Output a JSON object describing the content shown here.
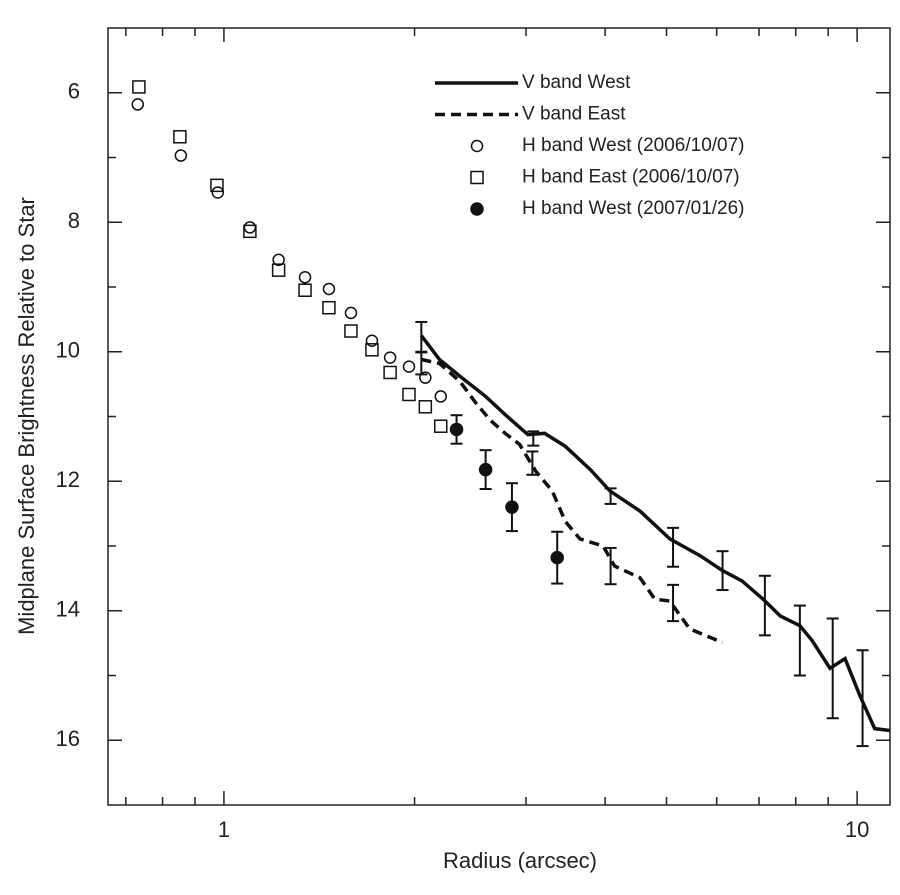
{
  "chart_data": {
    "type": "line",
    "xlabel": "Radius (arcsec)",
    "ylabel": "Midplane Surface Brightness Relative to Star",
    "xlog": true,
    "xlim": [
      0.656,
      11.27
    ],
    "xticks": [
      1,
      10
    ],
    "xminorticks": [
      0.7,
      0.8,
      0.9,
      2,
      3,
      4,
      5,
      6,
      7,
      8,
      9
    ],
    "ylim": [
      5,
      17
    ],
    "y_inverted": true,
    "yticks": [
      6,
      8,
      10,
      12,
      14,
      16
    ],
    "yminorticks": [
      7,
      9,
      11,
      13,
      15
    ],
    "legend": "upper right",
    "series": [
      {
        "name": "V band West",
        "style": "solid",
        "color": "#111",
        "x": [
          2.05,
          2.19,
          2.36,
          2.59,
          2.78,
          3.02,
          3.21,
          3.46,
          3.79,
          4.07,
          4.54,
          5.06,
          5.65,
          6.13,
          6.58,
          7.1,
          7.56,
          8.12,
          8.49,
          9.06,
          9.57,
          10.1,
          10.66,
          11.27
        ],
        "values": [
          9.75,
          10.12,
          10.38,
          10.69,
          10.97,
          11.28,
          11.26,
          11.46,
          11.82,
          12.15,
          12.46,
          12.89,
          13.15,
          13.38,
          13.54,
          13.82,
          14.08,
          14.23,
          14.46,
          14.89,
          14.74,
          15.31,
          15.82,
          15.85
        ],
        "error_points": {
          "x": [
            2.05,
            3.08,
            4.08,
            5.12,
            6.13,
            7.15,
            8.12,
            9.15,
            10.2
          ],
          "values": [
            9.77,
            11.34,
            12.23,
            13.02,
            13.38,
            13.92,
            14.46,
            14.89,
            15.35
          ],
          "errors": [
            0.23,
            0.11,
            0.12,
            0.3,
            0.3,
            0.46,
            0.54,
            0.77,
            0.74
          ]
        }
      },
      {
        "name": "V band East",
        "style": "dashed",
        "color": "#111",
        "x": [
          2.05,
          2.19,
          2.36,
          2.49,
          2.63,
          2.78,
          2.93,
          3.11,
          3.3,
          3.46,
          3.65,
          3.97,
          4.14,
          4.54,
          4.79,
          5.06,
          5.44,
          6.13
        ],
        "values": [
          10.12,
          10.18,
          10.46,
          10.77,
          11.05,
          11.26,
          11.43,
          11.85,
          12.15,
          12.62,
          12.89,
          13.0,
          13.31,
          13.49,
          13.82,
          13.85,
          14.28,
          14.49
        ],
        "error_points": {
          "x": [
            2.05,
            3.07,
            4.08,
            5.12
          ],
          "values": [
            10.18,
            11.72,
            13.31,
            13.88
          ],
          "errors": [
            0.17,
            0.18,
            0.28,
            0.28
          ]
        }
      },
      {
        "name": "H band West (2006/10/07)",
        "marker": "open-circle",
        "color": "#111",
        "x": [
          0.731,
          0.855,
          0.978,
          1.099,
          1.22,
          1.343,
          1.465,
          1.587,
          1.713,
          1.83,
          1.96,
          2.08,
          2.2
        ],
        "values": [
          6.18,
          6.97,
          7.54,
          8.08,
          8.58,
          8.85,
          9.03,
          9.4,
          9.83,
          10.09,
          10.23,
          10.4,
          10.69
        ]
      },
      {
        "name": "H band East (2006/10/07)",
        "marker": "open-square",
        "color": "#111",
        "x": [
          0.734,
          0.852,
          0.975,
          1.099,
          1.22,
          1.343,
          1.465,
          1.587,
          1.713,
          1.83,
          1.96,
          2.08,
          2.2
        ],
        "values": [
          5.91,
          6.68,
          7.43,
          8.14,
          8.74,
          9.05,
          9.32,
          9.68,
          9.97,
          10.32,
          10.66,
          10.85,
          11.15
        ]
      },
      {
        "name": "H band West (2007/01/26)",
        "marker": "filled-circle",
        "color": "#111",
        "x": [
          2.33,
          2.59,
          2.85,
          3.36
        ],
        "values": [
          11.2,
          11.82,
          12.4,
          13.18
        ],
        "errors": [
          0.22,
          0.3,
          0.37,
          0.4
        ]
      }
    ]
  }
}
